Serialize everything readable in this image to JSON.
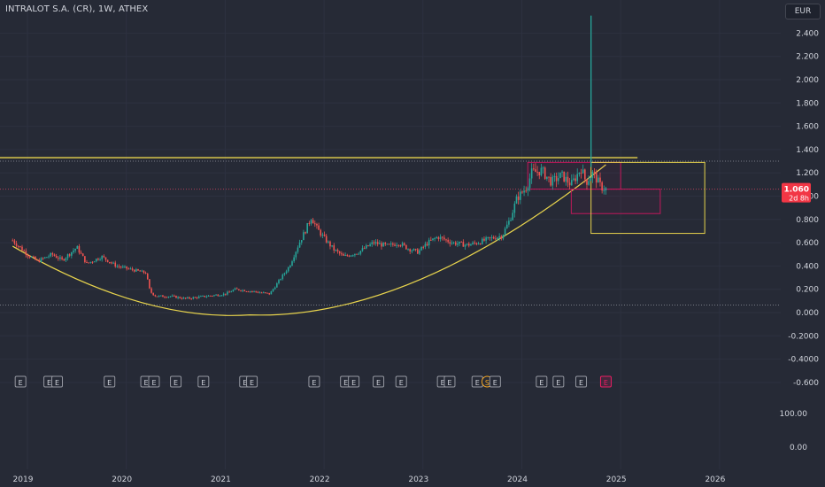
{
  "header": {
    "title": "INTRALOT S.A. (CR), 1W, ATHEX",
    "currency": "EUR"
  },
  "price_badge": {
    "price": "1.060",
    "countdown": "2d 8h"
  },
  "colors": {
    "background": "#262a36",
    "up": "#26a69a",
    "down": "#ef5350",
    "drawing_yellow": "#e8d44d",
    "drawing_pink": "#c2185b",
    "text": "#d1d4dc"
  },
  "chart_data": {
    "type": "candlestick",
    "title": "INTRALOT S.A. (CR), 1W, ATHEX",
    "ylim": [
      -0.7,
      2.55
    ],
    "y_ticks": [
      "2.400",
      "2.200",
      "2.000",
      "1.800",
      "1.600",
      "1.400",
      "1.200",
      "1.000",
      "0.800",
      "0.600",
      "0.400",
      "0.200",
      "0.000",
      "-0.2000",
      "-0.4000",
      "-0.600"
    ],
    "x_ticks": [
      "2019",
      "2020",
      "2021",
      "2022",
      "2023",
      "2024",
      "2025",
      "2026"
    ],
    "x_range": [
      2018.85,
      2026.5
    ],
    "lower_scale_ticks": [
      "100.00",
      "0.00"
    ],
    "price_path": [
      [
        2018.85,
        0.62
      ],
      [
        2019.0,
        0.5
      ],
      [
        2019.1,
        0.44
      ],
      [
        2019.25,
        0.5
      ],
      [
        2019.35,
        0.45
      ],
      [
        2019.5,
        0.56
      ],
      [
        2019.6,
        0.42
      ],
      [
        2019.75,
        0.48
      ],
      [
        2019.9,
        0.4
      ],
      [
        2020.1,
        0.36
      ],
      [
        2020.2,
        0.34
      ],
      [
        2020.24,
        0.18
      ],
      [
        2020.3,
        0.14
      ],
      [
        2020.45,
        0.14
      ],
      [
        2020.6,
        0.12
      ],
      [
        2020.8,
        0.14
      ],
      [
        2021.0,
        0.16
      ],
      [
        2021.1,
        0.2
      ],
      [
        2021.3,
        0.18
      ],
      [
        2021.45,
        0.16
      ],
      [
        2021.55,
        0.28
      ],
      [
        2021.65,
        0.4
      ],
      [
        2021.75,
        0.6
      ],
      [
        2021.82,
        0.72
      ],
      [
        2021.87,
        0.82
      ],
      [
        2021.93,
        0.72
      ],
      [
        2022.0,
        0.64
      ],
      [
        2022.1,
        0.54
      ],
      [
        2022.2,
        0.48
      ],
      [
        2022.35,
        0.52
      ],
      [
        2022.5,
        0.6
      ],
      [
        2022.65,
        0.57
      ],
      [
        2022.75,
        0.6
      ],
      [
        2022.85,
        0.55
      ],
      [
        2022.95,
        0.52
      ],
      [
        2023.05,
        0.6
      ],
      [
        2023.15,
        0.65
      ],
      [
        2023.3,
        0.6
      ],
      [
        2023.45,
        0.58
      ],
      [
        2023.55,
        0.6
      ],
      [
        2023.7,
        0.64
      ],
      [
        2023.8,
        0.66
      ],
      [
        2023.88,
        0.8
      ],
      [
        2023.95,
        0.98
      ],
      [
        2024.05,
        1.08
      ],
      [
        2024.1,
        1.2
      ],
      [
        2024.2,
        1.22
      ],
      [
        2024.3,
        1.12
      ],
      [
        2024.4,
        1.18
      ],
      [
        2024.5,
        1.1
      ],
      [
        2024.6,
        1.24
      ],
      [
        2024.65,
        1.12
      ],
      [
        2024.72,
        1.2
      ],
      [
        2024.8,
        1.08
      ],
      [
        2024.85,
        1.06
      ]
    ],
    "spike": {
      "x": 2024.7,
      "low": 1.25,
      "high": 2.55
    },
    "drawings": {
      "horizontal_line": {
        "y": 1.33,
        "x_end": 2025.17
      },
      "dotted_lines": [
        1.3,
        1.06,
        0.065
      ],
      "arc": {
        "from": [
          2018.85,
          0.57
        ],
        "vertex": [
          2021.25,
          -0.02
        ],
        "to": [
          2024.85,
          1.27
        ]
      },
      "pink_boxes": [
        {
          "x": [
            2024.06,
            2025.0
          ],
          "y": [
            1.06,
            1.29
          ]
        },
        {
          "x": [
            2024.5,
            2025.4
          ],
          "y": [
            0.85,
            1.06
          ]
        }
      ],
      "yellow_boxes": [
        {
          "x": [
            2024.7,
            2025.85
          ],
          "y": [
            0.68,
            1.29
          ]
        }
      ]
    },
    "event_markers": [
      {
        "x": 2018.93,
        "label": "E"
      },
      {
        "x": 2019.22,
        "label": "E"
      },
      {
        "x": 2019.3,
        "label": "E"
      },
      {
        "x": 2019.83,
        "label": "E"
      },
      {
        "x": 2020.2,
        "label": "E"
      },
      {
        "x": 2020.28,
        "label": "E"
      },
      {
        "x": 2020.5,
        "label": "E"
      },
      {
        "x": 2020.78,
        "label": "E"
      },
      {
        "x": 2021.2,
        "label": "E"
      },
      {
        "x": 2021.27,
        "label": "E"
      },
      {
        "x": 2021.9,
        "label": "E"
      },
      {
        "x": 2022.22,
        "label": "E"
      },
      {
        "x": 2022.3,
        "label": "E"
      },
      {
        "x": 2022.55,
        "label": "E"
      },
      {
        "x": 2022.78,
        "label": "E"
      },
      {
        "x": 2023.2,
        "label": "E"
      },
      {
        "x": 2023.27,
        "label": "E"
      },
      {
        "x": 2023.55,
        "label": "E"
      },
      {
        "x": 2023.65,
        "label": "S"
      },
      {
        "x": 2023.73,
        "label": "E"
      },
      {
        "x": 2024.2,
        "label": "E"
      },
      {
        "x": 2024.37,
        "label": "E"
      },
      {
        "x": 2024.6,
        "label": "E"
      },
      {
        "x": 2024.85,
        "label": "E"
      }
    ]
  }
}
